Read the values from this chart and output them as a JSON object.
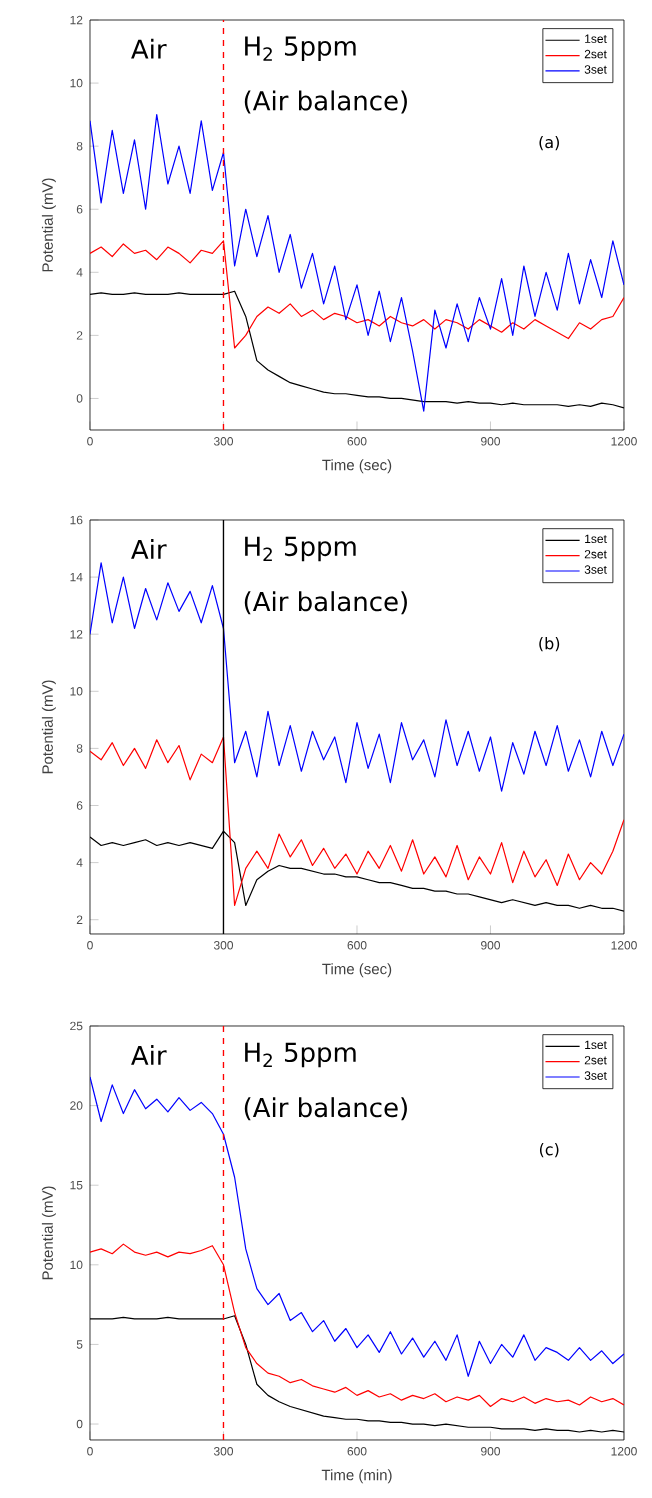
{
  "chart_data": [
    {
      "type": "line",
      "xlabel": "Time (sec)",
      "ylabel": "Potential (mV)",
      "xlim": [
        0,
        1200
      ],
      "ylim": [
        -1,
        12
      ],
      "xticks": [
        0,
        300,
        600,
        900,
        1200
      ],
      "yticks": [
        0,
        2,
        4,
        6,
        8,
        10,
        12
      ],
      "legend": "top right",
      "grid": false,
      "annotations": [
        "Air",
        "H$_{2}$ 5ppm",
        "(Air balance)",
        "(a)"
      ],
      "ref_lines": [
        {
          "axis": "x",
          "value": 300,
          "color": "#ff0000",
          "line_style": "dashed"
        }
      ],
      "x": [
        0,
        25,
        50,
        75,
        100,
        125,
        150,
        175,
        200,
        225,
        250,
        275,
        300,
        325,
        350,
        375,
        400,
        425,
        450,
        475,
        500,
        525,
        550,
        575,
        600,
        625,
        650,
        675,
        700,
        725,
        750,
        775,
        800,
        825,
        850,
        875,
        900,
        925,
        950,
        975,
        1000,
        1025,
        1050,
        1075,
        1100,
        1125,
        1150,
        1175,
        1200
      ],
      "series": [
        {
          "name": "1set",
          "color": "#000000",
          "values": [
            3.3,
            3.35,
            3.3,
            3.3,
            3.35,
            3.3,
            3.3,
            3.3,
            3.35,
            3.3,
            3.3,
            3.3,
            3.3,
            3.4,
            2.6,
            1.2,
            0.9,
            0.7,
            0.5,
            0.4,
            0.3,
            0.2,
            0.15,
            0.15,
            0.1,
            0.05,
            0.05,
            0.0,
            0.0,
            -0.05,
            -0.1,
            -0.1,
            -0.1,
            -0.15,
            -0.1,
            -0.15,
            -0.15,
            -0.2,
            -0.15,
            -0.2,
            -0.2,
            -0.2,
            -0.2,
            -0.25,
            -0.2,
            -0.25,
            -0.15,
            -0.2,
            -0.3
          ]
        },
        {
          "name": "2set",
          "color": "#ff0000",
          "values": [
            4.6,
            4.8,
            4.5,
            4.9,
            4.6,
            4.7,
            4.4,
            4.8,
            4.6,
            4.3,
            4.7,
            4.6,
            5.0,
            1.6,
            2.0,
            2.6,
            2.9,
            2.7,
            3.0,
            2.6,
            2.8,
            2.5,
            2.7,
            2.6,
            2.4,
            2.5,
            2.3,
            2.6,
            2.4,
            2.3,
            2.5,
            2.2,
            2.5,
            2.4,
            2.2,
            2.5,
            2.3,
            2.1,
            2.4,
            2.2,
            2.5,
            2.3,
            2.1,
            1.9,
            2.4,
            2.2,
            2.5,
            2.6,
            3.2
          ]
        },
        {
          "name": "3set",
          "color": "#0000ff",
          "values": [
            8.8,
            6.2,
            8.5,
            6.5,
            8.2,
            6.0,
            9.0,
            6.8,
            8.0,
            6.5,
            8.8,
            6.6,
            7.8,
            4.2,
            6.0,
            4.5,
            5.8,
            4.0,
            5.2,
            3.5,
            4.6,
            3.0,
            4.2,
            2.5,
            3.6,
            2.0,
            3.4,
            1.8,
            3.2,
            1.5,
            -0.4,
            2.8,
            1.6,
            3.0,
            1.8,
            3.2,
            2.2,
            3.8,
            2.0,
            4.2,
            2.6,
            4.0,
            2.8,
            4.6,
            3.0,
            4.4,
            3.2,
            5.0,
            3.6
          ]
        }
      ]
    },
    {
      "type": "line",
      "xlabel": "Time (sec)",
      "ylabel": "Potential (mV)",
      "xlim": [
        0,
        1200
      ],
      "ylim": [
        1.5,
        16
      ],
      "xticks": [
        0,
        300,
        600,
        900,
        1200
      ],
      "yticks": [
        2,
        4,
        6,
        8,
        10,
        12,
        14,
        16
      ],
      "legend": "top right",
      "grid": false,
      "annotations": [
        "Air",
        "H$_{2}$ 5ppm",
        "(Air balance)",
        "(b)"
      ],
      "ref_lines": [
        {
          "axis": "x",
          "value": 300,
          "color": "#000000",
          "line_style": "solid"
        }
      ],
      "x": [
        0,
        25,
        50,
        75,
        100,
        125,
        150,
        175,
        200,
        225,
        250,
        275,
        300,
        325,
        350,
        375,
        400,
        425,
        450,
        475,
        500,
        525,
        550,
        575,
        600,
        625,
        650,
        675,
        700,
        725,
        750,
        775,
        800,
        825,
        850,
        875,
        900,
        925,
        950,
        975,
        1000,
        1025,
        1050,
        1075,
        1100,
        1125,
        1150,
        1175,
        1200
      ],
      "series": [
        {
          "name": "1set",
          "color": "#000000",
          "values": [
            4.9,
            4.6,
            4.7,
            4.6,
            4.7,
            4.8,
            4.6,
            4.7,
            4.6,
            4.7,
            4.6,
            4.5,
            5.1,
            4.7,
            2.5,
            3.4,
            3.7,
            3.9,
            3.8,
            3.8,
            3.7,
            3.6,
            3.6,
            3.5,
            3.5,
            3.4,
            3.3,
            3.3,
            3.2,
            3.1,
            3.1,
            3.0,
            3.0,
            2.9,
            2.9,
            2.8,
            2.7,
            2.6,
            2.7,
            2.6,
            2.5,
            2.6,
            2.5,
            2.5,
            2.4,
            2.5,
            2.4,
            2.4,
            2.3
          ]
        },
        {
          "name": "2set",
          "color": "#ff0000",
          "values": [
            7.9,
            7.6,
            8.2,
            7.4,
            8.0,
            7.3,
            8.3,
            7.5,
            8.1,
            6.9,
            7.8,
            7.5,
            8.4,
            2.5,
            3.8,
            4.4,
            3.8,
            5.0,
            4.2,
            4.8,
            3.9,
            4.5,
            3.8,
            4.3,
            3.6,
            4.4,
            3.8,
            4.6,
            3.7,
            4.8,
            3.6,
            4.2,
            3.5,
            4.6,
            3.4,
            4.2,
            3.6,
            4.7,
            3.3,
            4.4,
            3.5,
            4.1,
            3.2,
            4.3,
            3.4,
            4.0,
            3.6,
            4.4,
            5.5
          ]
        },
        {
          "name": "3set",
          "color": "#0000ff",
          "values": [
            12.0,
            14.5,
            12.4,
            14.0,
            12.2,
            13.6,
            12.5,
            13.8,
            12.8,
            13.5,
            12.4,
            13.7,
            12.2,
            7.5,
            8.6,
            7.0,
            9.3,
            7.4,
            8.8,
            7.2,
            8.6,
            7.6,
            8.4,
            6.8,
            8.9,
            7.3,
            8.5,
            6.8,
            8.9,
            7.6,
            8.3,
            7.0,
            9.0,
            7.4,
            8.6,
            7.2,
            8.4,
            6.5,
            8.2,
            7.1,
            8.6,
            7.4,
            8.8,
            7.2,
            8.3,
            7.0,
            8.6,
            7.4,
            8.5
          ]
        }
      ]
    },
    {
      "type": "line",
      "xlabel": "Time (min)",
      "ylabel": "Potential (mV)",
      "xlim": [
        0,
        1200
      ],
      "ylim": [
        -1,
        25
      ],
      "xticks": [
        0,
        300,
        600,
        900,
        1200
      ],
      "yticks": [
        0,
        5,
        10,
        15,
        20,
        25
      ],
      "legend": "top right",
      "grid": false,
      "annotations": [
        "Air",
        "H$_{2}$ 5ppm",
        "(Air balance)",
        "(c)"
      ],
      "ref_lines": [
        {
          "axis": "x",
          "value": 300,
          "color": "#ff0000",
          "line_style": "dashed"
        }
      ],
      "x": [
        0,
        25,
        50,
        75,
        100,
        125,
        150,
        175,
        200,
        225,
        250,
        275,
        300,
        325,
        350,
        375,
        400,
        425,
        450,
        475,
        500,
        525,
        550,
        575,
        600,
        625,
        650,
        675,
        700,
        725,
        750,
        775,
        800,
        825,
        850,
        875,
        900,
        925,
        950,
        975,
        1000,
        1025,
        1050,
        1075,
        1100,
        1125,
        1150,
        1175,
        1200
      ],
      "series": [
        {
          "name": "1set",
          "color": "#000000",
          "values": [
            6.6,
            6.6,
            6.6,
            6.7,
            6.6,
            6.6,
            6.6,
            6.7,
            6.6,
            6.6,
            6.6,
            6.6,
            6.6,
            6.8,
            5.0,
            2.5,
            1.8,
            1.4,
            1.1,
            0.9,
            0.7,
            0.5,
            0.4,
            0.3,
            0.3,
            0.2,
            0.2,
            0.1,
            0.1,
            0.0,
            0.0,
            -0.1,
            0.0,
            -0.1,
            -0.2,
            -0.2,
            -0.2,
            -0.3,
            -0.3,
            -0.3,
            -0.4,
            -0.3,
            -0.4,
            -0.4,
            -0.5,
            -0.4,
            -0.5,
            -0.4,
            -0.5
          ]
        },
        {
          "name": "2set",
          "color": "#ff0000",
          "values": [
            10.8,
            11.0,
            10.7,
            11.3,
            10.8,
            10.6,
            10.8,
            10.5,
            10.8,
            10.7,
            10.9,
            11.2,
            10.0,
            7.0,
            4.8,
            3.8,
            3.2,
            3.0,
            2.6,
            2.8,
            2.4,
            2.2,
            2.0,
            2.3,
            1.8,
            2.1,
            1.7,
            1.9,
            1.5,
            1.8,
            1.6,
            1.9,
            1.4,
            1.7,
            1.5,
            1.8,
            1.1,
            1.6,
            1.4,
            1.7,
            1.3,
            1.6,
            1.4,
            1.5,
            1.2,
            1.7,
            1.4,
            1.6,
            1.2
          ]
        },
        {
          "name": "3set",
          "color": "#0000ff",
          "values": [
            21.8,
            19.0,
            21.3,
            19.5,
            21.0,
            19.8,
            20.4,
            19.6,
            20.5,
            19.7,
            20.2,
            19.5,
            18.2,
            15.5,
            11.0,
            8.5,
            7.5,
            8.2,
            6.5,
            7.0,
            5.8,
            6.5,
            5.2,
            6.0,
            4.8,
            5.6,
            4.5,
            5.8,
            4.4,
            5.4,
            4.2,
            5.2,
            4.0,
            5.6,
            3.0,
            5.2,
            3.8,
            5.0,
            4.2,
            5.6,
            4.0,
            4.8,
            4.5,
            4.0,
            4.8,
            4.0,
            4.6,
            3.8,
            4.4
          ]
        }
      ]
    }
  ]
}
